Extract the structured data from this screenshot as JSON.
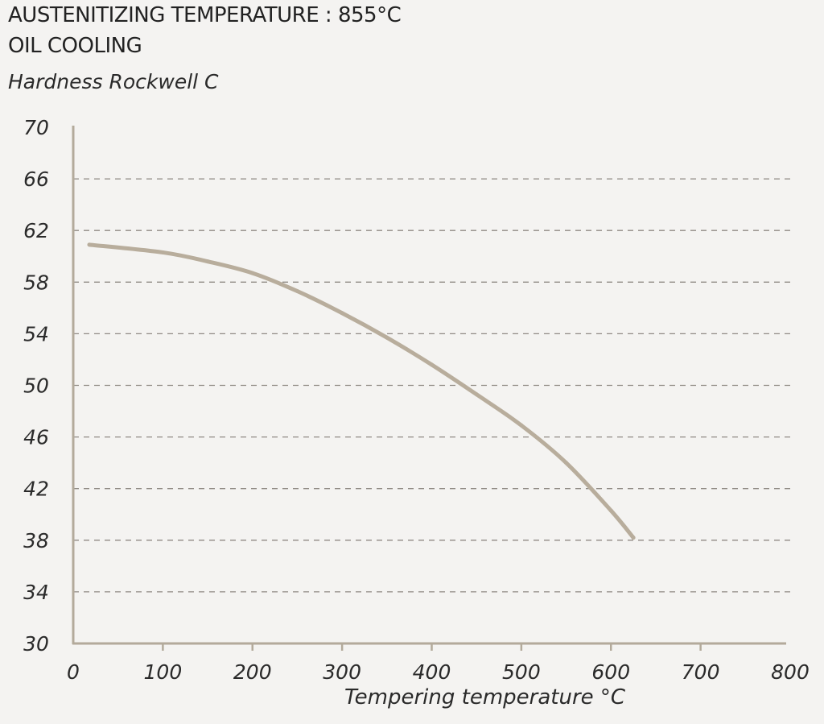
{
  "chart_data": {
    "type": "line",
    "title": "AUSTENITIZING TEMPERATURE : 855°C",
    "subtitle": "OIL COOLING",
    "ylabel": "Hardness Rockwell C",
    "xlabel": "Tempering temperature °C",
    "xlim": [
      0,
      800
    ],
    "ylim": [
      30,
      70
    ],
    "xticks": [
      0,
      100,
      200,
      300,
      400,
      500,
      600,
      700,
      800
    ],
    "yticks": [
      30,
      34,
      38,
      42,
      46,
      50,
      54,
      58,
      62,
      66,
      70
    ],
    "grid": "horizontal dashed",
    "colors": {
      "line": "#b8ad9c",
      "axis": "#b3aa9b",
      "grid": "#8f8a84",
      "background": "#f4f3f1"
    },
    "series": [
      {
        "x": [
          18,
          100,
          150,
          200,
          250,
          300,
          350,
          400,
          450,
          500,
          550,
          600,
          625
        ],
        "y": [
          60.9,
          60.3,
          59.6,
          58.7,
          57.3,
          55.6,
          53.7,
          51.6,
          49.3,
          46.9,
          44.0,
          40.3,
          38.2
        ]
      }
    ]
  }
}
